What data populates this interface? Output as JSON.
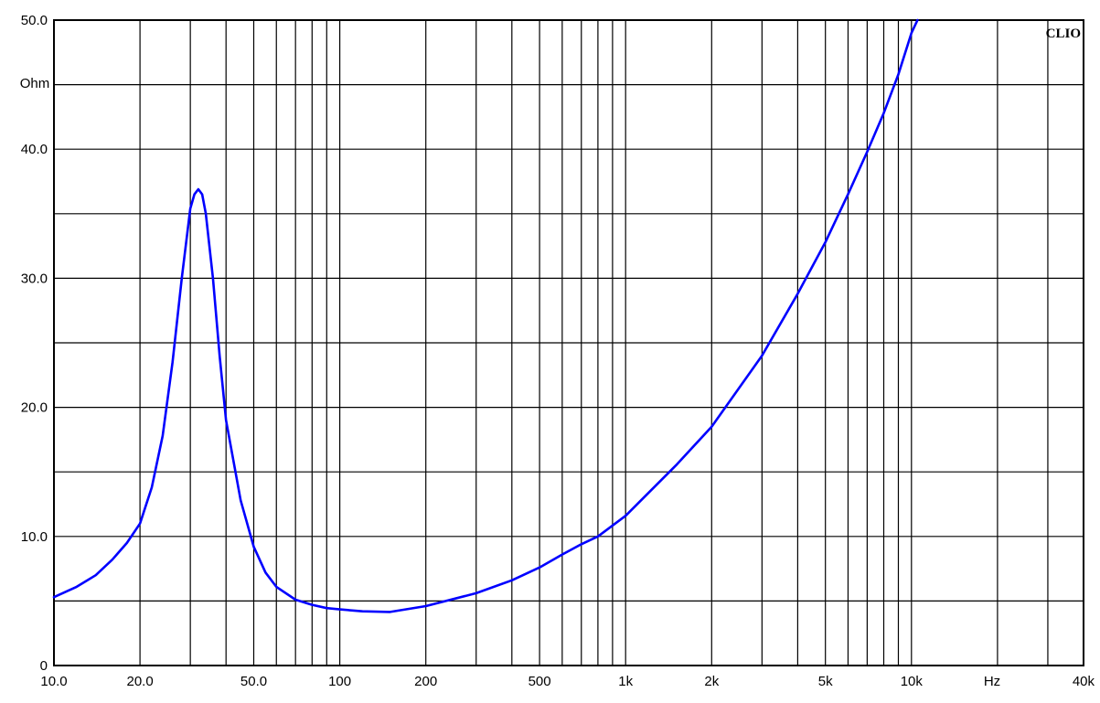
{
  "chart_data": {
    "type": "line",
    "title": "",
    "brand": "CLIO",
    "x_scale": "log",
    "xlim": [
      10,
      40000
    ],
    "ylim": [
      0,
      50
    ],
    "grid": true,
    "y_unit": "Ohm",
    "x_unit": "Hz",
    "line_color": "#0000ff",
    "y_ticks": [
      {
        "value": 0,
        "label": "0"
      },
      {
        "value": 10,
        "label": "10.0"
      },
      {
        "value": 20,
        "label": "20.0"
      },
      {
        "value": 30,
        "label": "30.0"
      },
      {
        "value": 40,
        "label": "40.0"
      },
      {
        "value": 50,
        "label": "50.0"
      }
    ],
    "x_ticks": [
      {
        "value": 10,
        "label": "10.0"
      },
      {
        "value": 20,
        "label": "20.0"
      },
      {
        "value": 50,
        "label": "50.0"
      },
      {
        "value": 100,
        "label": "100"
      },
      {
        "value": 200,
        "label": "200"
      },
      {
        "value": 500,
        "label": "500"
      },
      {
        "value": 1000,
        "label": "1k"
      },
      {
        "value": 2000,
        "label": "2k"
      },
      {
        "value": 5000,
        "label": "5k"
      },
      {
        "value": 10000,
        "label": "10k"
      },
      {
        "value": 40000,
        "label": "40k"
      }
    ],
    "series": [
      {
        "x": [
          10,
          12,
          14,
          16,
          18,
          20,
          22,
          24,
          26,
          28,
          30,
          31,
          32,
          33,
          34,
          36,
          38,
          40,
          45,
          50,
          55,
          60,
          70,
          80,
          90,
          100,
          120,
          150,
          200,
          300,
          400,
          500,
          600,
          700,
          800,
          1000,
          1500,
          2000,
          3000,
          4000,
          5000,
          6000,
          7000,
          8000,
          9000,
          10000,
          10500
        ],
        "y": [
          5.3,
          6.1,
          7.0,
          8.2,
          9.5,
          11.0,
          13.8,
          17.8,
          23.5,
          30.0,
          35.4,
          36.5,
          36.9,
          36.5,
          35.0,
          30.0,
          24.0,
          19.0,
          12.8,
          9.2,
          7.2,
          6.1,
          5.1,
          4.7,
          4.45,
          4.35,
          4.2,
          4.15,
          4.6,
          5.6,
          6.6,
          7.6,
          8.6,
          9.4,
          10.0,
          11.6,
          15.5,
          18.5,
          24.0,
          28.8,
          32.8,
          36.5,
          39.8,
          42.8,
          45.8,
          49.0,
          50.0
        ]
      }
    ]
  }
}
